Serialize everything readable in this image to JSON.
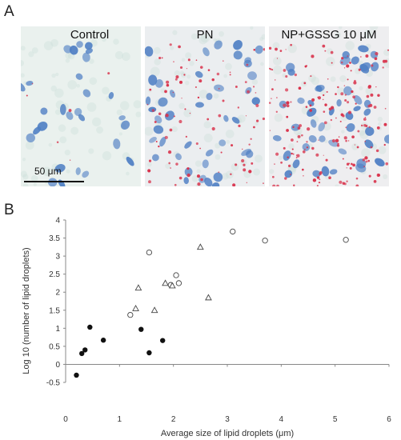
{
  "figure": {
    "panel_a_letter": "A",
    "panel_b_letter": "B",
    "panels": [
      {
        "label": "Control",
        "tint": "#eaf1ee",
        "droplets": "sparse"
      },
      {
        "label": "PN",
        "tint": "#ebeef0",
        "droplets": "moderate"
      },
      {
        "label": "NP+GSSG 10 μM",
        "tint": "#eeeef0",
        "droplets": "dense"
      }
    ],
    "scale_bar_label": "50 μm",
    "colors": {
      "nucleus": "#4f7fc4",
      "droplet": "#d9324b"
    }
  },
  "chart_data": {
    "type": "scatter",
    "title": "",
    "xlabel": "Average size of lipid droplets (μm)",
    "ylabel": "Log 10 (number of lipid droplets)",
    "xlim": [
      0,
      6
    ],
    "ylim": [
      -0.5,
      4
    ],
    "xticks": [
      "0",
      "1",
      "2",
      "3",
      "4",
      "5",
      "6"
    ],
    "yticks": [
      "-0.5",
      "0",
      "0.5",
      "1",
      "1.5",
      "2",
      "2.5",
      "3",
      "3.5",
      "4"
    ],
    "grid": false,
    "legend": "none",
    "series": [
      {
        "marker": "filled-circle",
        "points": [
          [
            0.2,
            -0.3
          ],
          [
            0.3,
            0.3
          ],
          [
            0.36,
            0.4
          ],
          [
            0.45,
            1.03
          ],
          [
            0.7,
            0.67
          ],
          [
            1.4,
            0.97
          ],
          [
            1.55,
            0.32
          ],
          [
            1.8,
            0.66
          ]
        ]
      },
      {
        "marker": "open-circle",
        "points": [
          [
            1.2,
            1.37
          ],
          [
            1.55,
            3.1
          ],
          [
            1.95,
            2.2
          ],
          [
            2.05,
            2.47
          ],
          [
            2.1,
            2.25
          ],
          [
            3.1,
            3.68
          ],
          [
            3.7,
            3.43
          ],
          [
            5.2,
            3.45
          ]
        ]
      },
      {
        "marker": "open-triangle",
        "points": [
          [
            1.3,
            1.55
          ],
          [
            1.35,
            2.12
          ],
          [
            1.65,
            1.5
          ],
          [
            1.85,
            2.25
          ],
          [
            1.98,
            2.18
          ],
          [
            2.5,
            3.25
          ],
          [
            2.65,
            1.85
          ]
        ]
      }
    ]
  }
}
